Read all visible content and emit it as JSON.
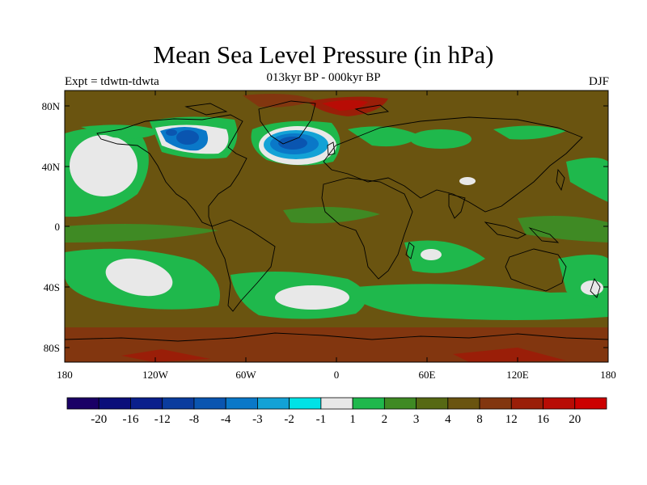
{
  "title": "Mean Sea Level Pressure (in hPa)",
  "subtitle": "013kyr BP - 000kyr BP",
  "expt_label": "Expt = tdwtn-tdwta",
  "season_label": "DJF",
  "map": {
    "lon_ticks": [
      "180",
      "120W",
      "60W",
      "0",
      "60E",
      "120E",
      "180"
    ],
    "lat_ticks": [
      "80N",
      "40N",
      "0",
      "40S",
      "80S"
    ],
    "lon_range": [
      -180,
      180
    ],
    "lat_range": [
      -90,
      90
    ],
    "projection": "cylindrical-equidistant"
  },
  "colorbar": {
    "colors": [
      "#1a0066",
      "#0b0e7a",
      "#0a1f8c",
      "#0a3c9e",
      "#0a55b0",
      "#0a78c8",
      "#13a2d6",
      "#00e2e6",
      "#e8e8e8",
      "#1fb84c",
      "#3f8a24",
      "#566914",
      "#6a5410",
      "#82360f",
      "#9a1e08",
      "#b80c05",
      "#cc0000"
    ],
    "labels": [
      "-20",
      "-16",
      "-12",
      "-8",
      "-4",
      "-3",
      "-2",
      "-1",
      "1",
      "2",
      "3",
      "4",
      "8",
      "12",
      "16",
      "20"
    ]
  }
}
